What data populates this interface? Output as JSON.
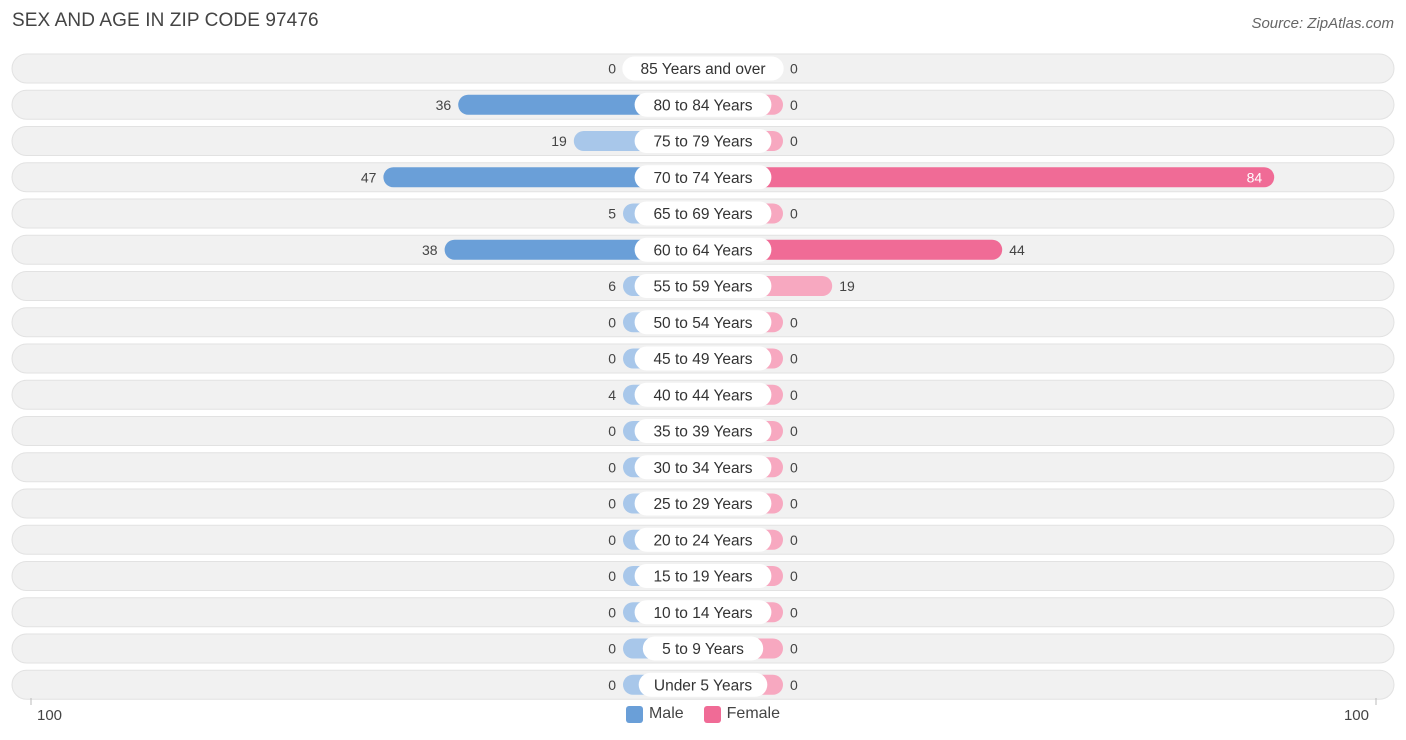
{
  "title": "SEX AND AGE IN ZIP CODE 97476",
  "source": "Source: ZipAtlas.com",
  "colors": {
    "male": "#6a9fd8",
    "male_light": "#a8c7ea",
    "female": "#f06b96",
    "female_light": "#f7a8c0",
    "track": "#f1f1f1"
  },
  "chart_data": {
    "type": "bar",
    "orientation": "horizontal-diverging",
    "categories": [
      "85 Years and over",
      "80 to 84 Years",
      "75 to 79 Years",
      "70 to 74 Years",
      "65 to 69 Years",
      "60 to 64 Years",
      "55 to 59 Years",
      "50 to 54 Years",
      "45 to 49 Years",
      "40 to 44 Years",
      "35 to 39 Years",
      "30 to 34 Years",
      "25 to 29 Years",
      "20 to 24 Years",
      "15 to 19 Years",
      "10 to 14 Years",
      "5 to 9 Years",
      "Under 5 Years"
    ],
    "series": [
      {
        "name": "Male",
        "values": [
          0,
          36,
          19,
          47,
          5,
          38,
          6,
          0,
          0,
          4,
          0,
          0,
          0,
          0,
          0,
          0,
          0,
          0
        ]
      },
      {
        "name": "Female",
        "values": [
          0,
          0,
          0,
          84,
          0,
          44,
          19,
          0,
          0,
          0,
          0,
          0,
          0,
          0,
          0,
          0,
          0,
          0
        ]
      }
    ],
    "xlim": [
      -100,
      100
    ],
    "axis_labels": {
      "left": "100",
      "right": "100"
    },
    "legend_position": "bottom-center"
  }
}
